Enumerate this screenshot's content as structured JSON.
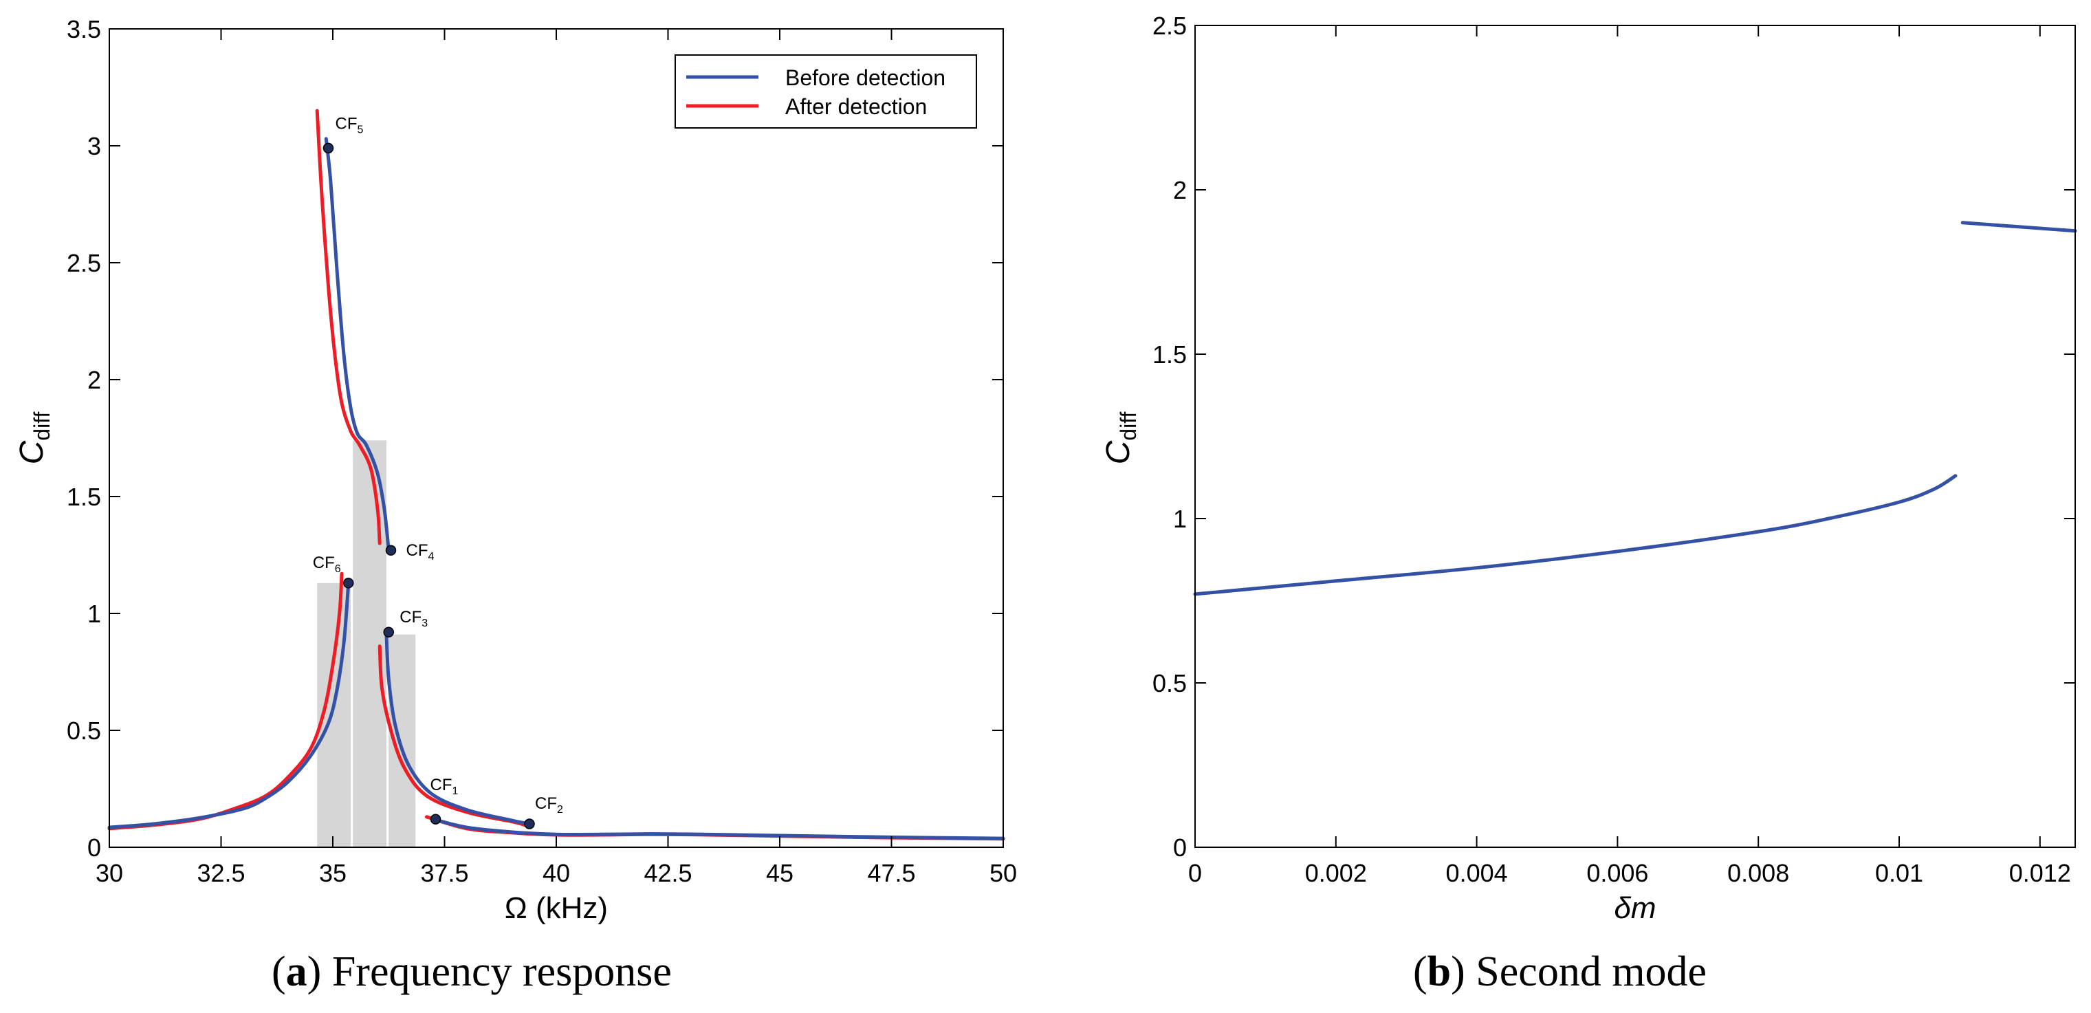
{
  "colors": {
    "blue": "#3451a5",
    "red": "#ee1c25",
    "bar": "#d6d6d6",
    "marker": "#1f2f5a"
  },
  "captions": {
    "a_letter": "a",
    "a_text": "Frequency response",
    "b_letter": "b",
    "b_text": "Second mode"
  },
  "chart_data": [
    {
      "type": "line",
      "title": "Frequency response",
      "xlabel": "Ω (kHz)",
      "ylabel_main": "C",
      "ylabel_sub": "diff",
      "xlim": [
        30,
        50
      ],
      "ylim": [
        0,
        3.5
      ],
      "xticks": [
        30,
        32.5,
        35,
        37.5,
        40,
        42.5,
        45,
        47.5,
        50
      ],
      "xtick_labels": [
        "30",
        "32.5",
        "35",
        "37.5",
        "40",
        "42.5",
        "45",
        "47.5",
        "50"
      ],
      "yticks": [
        0,
        0.5,
        1,
        1.5,
        2,
        2.5,
        3,
        3.5
      ],
      "ytick_labels": [
        "0",
        "0.5",
        "1",
        "1.5",
        "2",
        "2.5",
        "3",
        "3.5"
      ],
      "legend": {
        "placement": "top-right",
        "entries": [
          "Before detection",
          "After detection"
        ]
      },
      "bars": [
        {
          "x0": 34.65,
          "x1": 35.4,
          "value": 1.13
        },
        {
          "x0": 35.45,
          "x1": 36.2,
          "value": 1.74
        },
        {
          "x0": 36.25,
          "x1": 36.85,
          "value": 0.91
        }
      ],
      "series": [
        {
          "name": "Before detection",
          "color_key": "blue",
          "segments": [
            [
              [
                30,
                0.085
              ],
              [
                31,
                0.1
              ],
              [
                32,
                0.125
              ],
              [
                33,
                0.165
              ],
              [
                33.5,
                0.21
              ],
              [
                34,
                0.28
              ],
              [
                34.5,
                0.39
              ],
              [
                34.9,
                0.53
              ],
              [
                35.1,
                0.68
              ],
              [
                35.25,
                0.88
              ],
              [
                35.35,
                1.13
              ]
            ],
            [
              [
                34.85,
                3.03
              ],
              [
                34.95,
                2.85
              ],
              [
                35.1,
                2.45
              ],
              [
                35.25,
                2.1
              ],
              [
                35.4,
                1.88
              ],
              [
                35.55,
                1.77
              ],
              [
                35.75,
                1.72
              ],
              [
                36,
                1.6
              ],
              [
                36.15,
                1.45
              ],
              [
                36.25,
                1.27
              ]
            ],
            [
              [
                36.2,
                0.91
              ],
              [
                36.25,
                0.72
              ],
              [
                36.4,
                0.52
              ],
              [
                36.7,
                0.35
              ],
              [
                37.2,
                0.23
              ],
              [
                38,
                0.16
              ],
              [
                39,
                0.115
              ],
              [
                39.4,
                0.1
              ]
            ],
            [
              [
                37.25,
                0.12
              ],
              [
                38,
                0.085
              ],
              [
                39,
                0.065
              ],
              [
                40,
                0.055
              ],
              [
                41,
                0.055
              ],
              [
                42,
                0.057
              ],
              [
                43,
                0.056
              ],
              [
                45,
                0.05
              ],
              [
                47.5,
                0.043
              ],
              [
                50,
                0.038
              ]
            ]
          ]
        },
        {
          "name": "After detection",
          "color_key": "red",
          "segments": [
            [
              [
                30,
                0.08
              ],
              [
                31,
                0.095
              ],
              [
                32,
                0.12
              ],
              [
                32.8,
                0.165
              ],
              [
                33.5,
                0.22
              ],
              [
                34,
                0.3
              ],
              [
                34.5,
                0.42
              ],
              [
                34.8,
                0.58
              ],
              [
                35,
                0.78
              ],
              [
                35.15,
                1.0
              ],
              [
                35.2,
                1.17
              ]
            ],
            [
              [
                34.65,
                3.15
              ],
              [
                34.75,
                2.8
              ],
              [
                34.9,
                2.4
              ],
              [
                35.05,
                2.1
              ],
              [
                35.2,
                1.9
              ],
              [
                35.4,
                1.78
              ],
              [
                35.6,
                1.72
              ],
              [
                35.85,
                1.62
              ],
              [
                36,
                1.45
              ],
              [
                36.05,
                1.3
              ]
            ],
            [
              [
                36.05,
                0.86
              ],
              [
                36.1,
                0.68
              ],
              [
                36.3,
                0.5
              ],
              [
                36.6,
                0.34
              ],
              [
                37.1,
                0.22
              ],
              [
                38,
                0.15
              ],
              [
                39,
                0.11
              ],
              [
                39.3,
                0.095
              ]
            ],
            [
              [
                37.1,
                0.13
              ],
              [
                38,
                0.08
              ],
              [
                39,
                0.062
              ],
              [
                40,
                0.053
              ],
              [
                41,
                0.053
              ],
              [
                42,
                0.055
              ],
              [
                43,
                0.054
              ],
              [
                45,
                0.048
              ],
              [
                47.5,
                0.041
              ],
              [
                50,
                0.036
              ]
            ]
          ]
        }
      ],
      "points": [
        {
          "label_main": "CF",
          "label_sub": "1",
          "x": 37.3,
          "y": 0.12
        },
        {
          "label_main": "CF",
          "label_sub": "2",
          "x": 39.4,
          "y": 0.1
        },
        {
          "label_main": "CF",
          "label_sub": "3",
          "x": 36.25,
          "y": 0.92
        },
        {
          "label_main": "CF",
          "label_sub": "4",
          "x": 36.3,
          "y": 1.27
        },
        {
          "label_main": "CF",
          "label_sub": "5",
          "x": 34.9,
          "y": 2.99
        },
        {
          "label_main": "CF",
          "label_sub": "6",
          "x": 35.35,
          "y": 1.13
        }
      ]
    },
    {
      "type": "line",
      "title": "Second mode",
      "xlabel": "δm",
      "ylabel_main": "C",
      "ylabel_sub": "diff",
      "xlim": [
        0,
        0.0125
      ],
      "ylim": [
        0,
        2.5
      ],
      "xticks": [
        0,
        0.002,
        0.004,
        0.006,
        0.008,
        0.01,
        0.012
      ],
      "xtick_labels": [
        "0",
        "0.002",
        "0.004",
        "0.006",
        "0.008",
        "0.01",
        "0.012"
      ],
      "yticks": [
        0,
        0.5,
        1,
        1.5,
        2,
        2.5
      ],
      "ytick_labels": [
        "0",
        "0.5",
        "1",
        "1.5",
        "2",
        "2.5"
      ],
      "series": [
        {
          "name": "C_diff",
          "color_key": "blue",
          "segments": [
            [
              [
                0,
                0.77
              ],
              [
                0.002,
                0.81
              ],
              [
                0.004,
                0.85
              ],
              [
                0.006,
                0.9
              ],
              [
                0.008,
                0.96
              ],
              [
                0.009,
                1.0
              ],
              [
                0.01,
                1.05
              ],
              [
                0.0105,
                1.09
              ],
              [
                0.0108,
                1.13
              ]
            ],
            [
              [
                0.0109,
                1.9
              ],
              [
                0.0125,
                1.875
              ]
            ]
          ]
        }
      ]
    }
  ]
}
